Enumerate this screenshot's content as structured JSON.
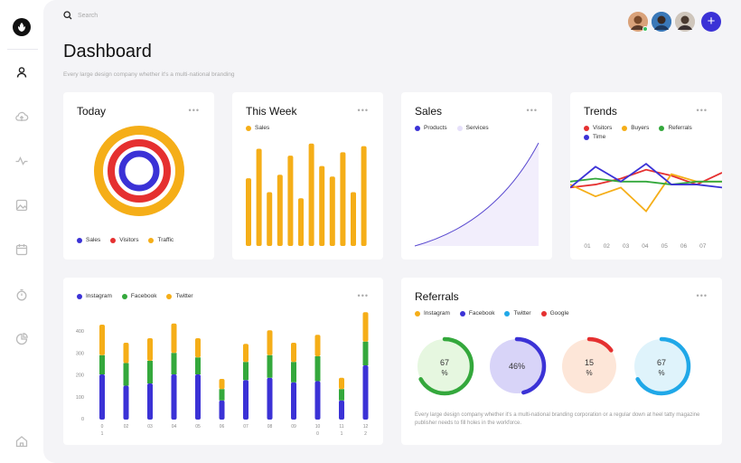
{
  "colors": {
    "blue": "#3b32d6",
    "red": "#e53030",
    "orange": "#f5ae18",
    "green": "#34a83c",
    "cyan": "#20a8e8",
    "lavender": "#d8d0f8",
    "text": "#111111",
    "muted": "#aaaaaa"
  },
  "search": {
    "placeholder": "Search"
  },
  "header": {
    "title": "Dashboard",
    "subtitle": "Every large design company whether it's a multi-national branding"
  },
  "cards": {
    "today": {
      "title": "Today",
      "menu": "•••",
      "legend": [
        "Sales",
        "Visitors",
        "Traffic"
      ]
    },
    "week": {
      "title": "This Week",
      "menu": "•••",
      "legend": [
        "Sales"
      ],
      "values": [
        78,
        112,
        62,
        82,
        104,
        55,
        118,
        92,
        80,
        108,
        62,
        115
      ]
    },
    "sales": {
      "title": "Sales",
      "menu": "•••",
      "legend": [
        "Products",
        "Services"
      ]
    },
    "trends": {
      "title": "Trends",
      "menu": "•••",
      "legend": [
        "Visitors",
        "Buyers",
        "Referrals",
        "Time"
      ],
      "x_labels": [
        "01",
        "02",
        "03",
        "04",
        "05",
        "06",
        "07"
      ],
      "series": [
        {
          "name": "Visitors",
          "values": [
            56,
            58,
            62,
            68,
            64,
            58,
            66
          ]
        },
        {
          "name": "Buyers",
          "values": [
            58,
            50,
            56,
            40,
            65,
            60,
            60
          ]
        },
        {
          "name": "Referrals",
          "values": [
            60,
            62,
            60,
            60,
            58,
            60,
            60
          ]
        },
        {
          "name": "Time",
          "values": [
            56,
            70,
            60,
            72,
            58,
            58,
            56
          ]
        }
      ]
    },
    "social": {
      "menu": "•••",
      "legend": [
        "Instagram",
        "Facebook",
        "Twitter"
      ],
      "y_labels": [
        "400",
        "300",
        "200",
        "100",
        "0"
      ],
      "x_labels": [
        "0",
        "02",
        "03",
        "04",
        "05",
        "06",
        "07",
        "08",
        "09",
        "10",
        "11",
        "12"
      ],
      "x_labels_sub": [
        "1",
        "",
        "",
        "",
        "",
        "",
        "",
        "",
        "",
        "0",
        "1",
        "2"
      ],
      "bars": [
        {
          "instagram": 200,
          "facebook": 85,
          "twitter": 135
        },
        {
          "instagram": 150,
          "facebook": 100,
          "twitter": 90
        },
        {
          "instagram": 160,
          "facebook": 100,
          "twitter": 100
        },
        {
          "instagram": 200,
          "facebook": 95,
          "twitter": 130
        },
        {
          "instagram": 200,
          "facebook": 75,
          "twitter": 85
        },
        {
          "instagram": 85,
          "facebook": 50,
          "twitter": 45
        },
        {
          "instagram": 175,
          "facebook": 80,
          "twitter": 80
        },
        {
          "instagram": 185,
          "facebook": 100,
          "twitter": 110
        },
        {
          "instagram": 165,
          "facebook": 90,
          "twitter": 85
        },
        {
          "instagram": 170,
          "facebook": 110,
          "twitter": 95
        },
        {
          "instagram": 85,
          "facebook": 50,
          "twitter": 50
        },
        {
          "instagram": 240,
          "facebook": 105,
          "twitter": 130
        }
      ]
    },
    "referrals": {
      "title": "Referrals",
      "menu": "•••",
      "legend": [
        "Instagram",
        "Facebook",
        "Twitter",
        "Google"
      ],
      "gauges": [
        {
          "label_top": "67",
          "label_bottom": "%",
          "fraction": 0.67
        },
        {
          "label_top": "46%",
          "label_bottom": "",
          "fraction": 0.46
        },
        {
          "label_top": "15",
          "label_bottom": "%",
          "fraction": 0.15
        },
        {
          "label_top": "67",
          "label_bottom": "%",
          "fraction": 0.67
        }
      ],
      "text": "Every large design company whether it's a multi-national branding corporation or a regular down at heel tatty magazine publisher needs to fill holes in the workforce."
    }
  }
}
